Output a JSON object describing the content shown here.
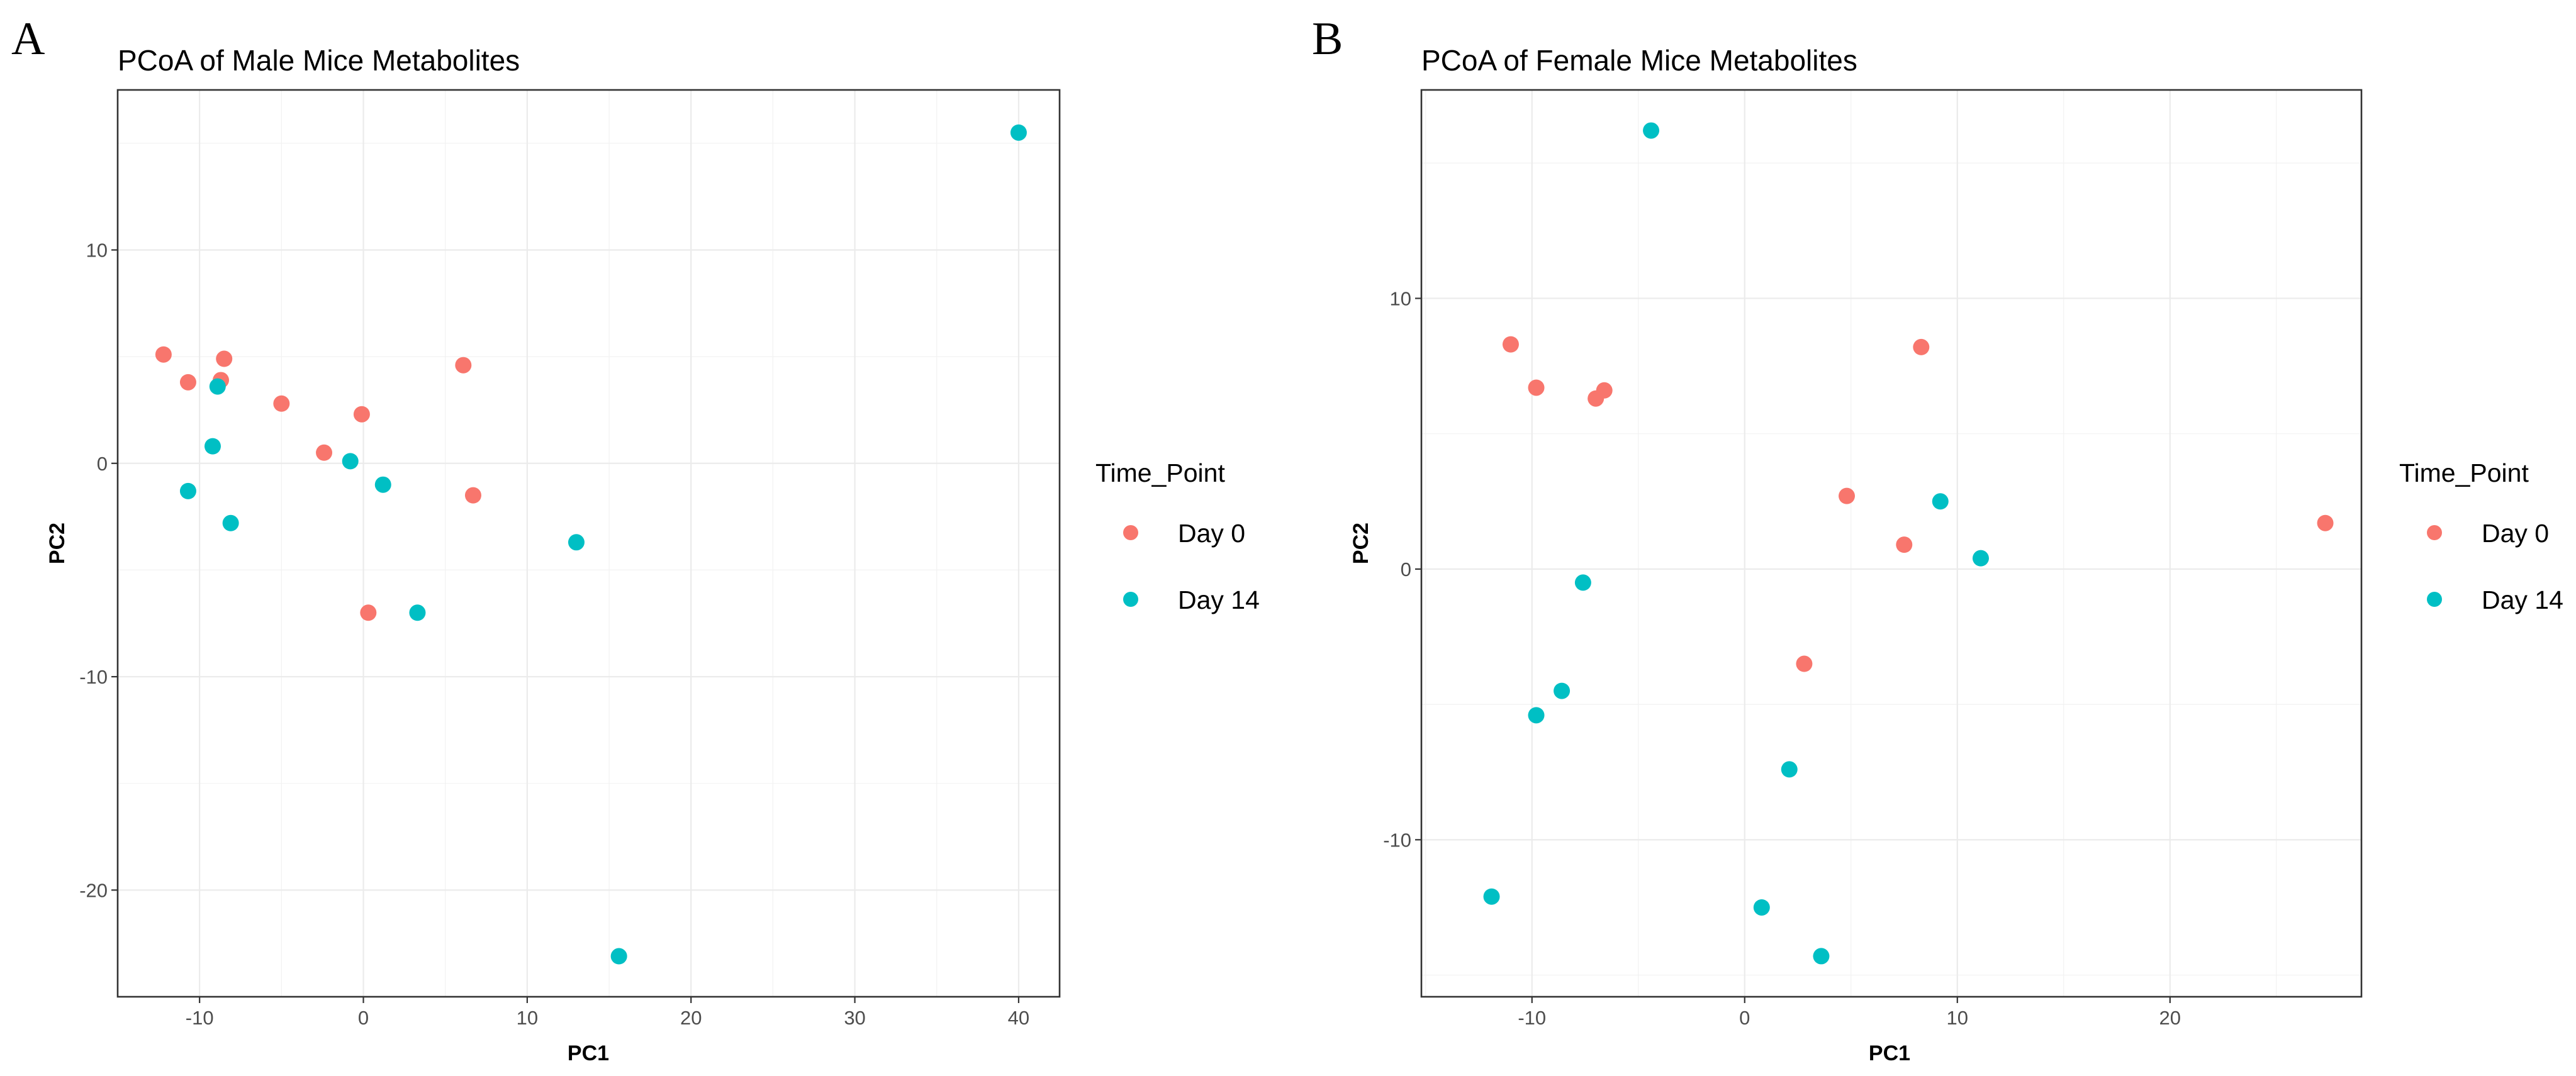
{
  "colors": {
    "day0": "#F8766D",
    "day14": "#00BFC4"
  },
  "chart_data": [
    {
      "panel_label": "A",
      "type": "scatter",
      "title": "PCoA of Male Mice Metabolites",
      "xlabel": "PC1",
      "ylabel": "PC2",
      "xlim": [
        -15,
        42.5
      ],
      "ylim": [
        -25,
        17.5
      ],
      "xticks": [
        -10,
        0,
        10,
        20,
        30,
        40
      ],
      "yticks": [
        -20,
        -10,
        0,
        10
      ],
      "grid": true,
      "legend": {
        "title": "Time_Point",
        "position": "right",
        "entries": [
          "Day 0",
          "Day 14"
        ]
      },
      "series": [
        {
          "name": "Day 0",
          "color": "#F8766D",
          "points": [
            {
              "x": -12.2,
              "y": 5.1
            },
            {
              "x": -10.7,
              "y": 3.8
            },
            {
              "x": -8.5,
              "y": 4.9
            },
            {
              "x": -8.7,
              "y": 3.9
            },
            {
              "x": -5.0,
              "y": 2.8
            },
            {
              "x": -0.1,
              "y": 2.3
            },
            {
              "x": -2.4,
              "y": 0.5
            },
            {
              "x": 6.1,
              "y": 4.6
            },
            {
              "x": 6.7,
              "y": -1.5
            },
            {
              "x": 0.3,
              "y": -7.0
            }
          ]
        },
        {
          "name": "Day 14",
          "color": "#00BFC4",
          "points": [
            {
              "x": -8.9,
              "y": 3.6
            },
            {
              "x": -9.2,
              "y": 0.8
            },
            {
              "x": -10.7,
              "y": -1.3
            },
            {
              "x": -8.1,
              "y": -2.8
            },
            {
              "x": -0.8,
              "y": 0.1
            },
            {
              "x": 1.2,
              "y": -1.0
            },
            {
              "x": 3.3,
              "y": -7.0
            },
            {
              "x": 13.0,
              "y": -3.7
            },
            {
              "x": 15.6,
              "y": -23.1
            },
            {
              "x": 40.0,
              "y": 15.5
            }
          ]
        }
      ]
    },
    {
      "panel_label": "B",
      "type": "scatter",
      "title": "PCoA of Female Mice Metabolites",
      "xlabel": "PC1",
      "ylabel": "PC2",
      "xlim": [
        -15.2,
        29
      ],
      "ylim": [
        -15.8,
        17.7
      ],
      "xticks": [
        -10,
        0,
        10,
        20
      ],
      "yticks": [
        -10,
        0,
        10
      ],
      "grid": true,
      "legend": {
        "title": "Time_Point",
        "position": "right",
        "entries": [
          "Day 0",
          "Day 14"
        ]
      },
      "series": [
        {
          "name": "Day 0",
          "color": "#F8766D",
          "points": [
            {
              "x": -11.0,
              "y": 8.3
            },
            {
              "x": -9.8,
              "y": 6.7
            },
            {
              "x": -7.0,
              "y": 6.3
            },
            {
              "x": -6.6,
              "y": 6.6
            },
            {
              "x": 8.3,
              "y": 8.2
            },
            {
              "x": 4.8,
              "y": 2.7
            },
            {
              "x": 7.5,
              "y": 0.9
            },
            {
              "x": 27.3,
              "y": 1.7
            },
            {
              "x": 2.8,
              "y": -3.5
            }
          ]
        },
        {
          "name": "Day 14",
          "color": "#00BFC4",
          "points": [
            {
              "x": -4.4,
              "y": 16.2
            },
            {
              "x": 9.2,
              "y": 2.5
            },
            {
              "x": 11.1,
              "y": 0.4
            },
            {
              "x": -7.6,
              "y": -0.5
            },
            {
              "x": -8.6,
              "y": -4.5
            },
            {
              "x": -9.8,
              "y": -5.4
            },
            {
              "x": 2.1,
              "y": -7.4
            },
            {
              "x": -11.9,
              "y": -12.1
            },
            {
              "x": 0.8,
              "y": -12.5
            },
            {
              "x": 3.6,
              "y": -14.3
            }
          ]
        }
      ]
    }
  ]
}
